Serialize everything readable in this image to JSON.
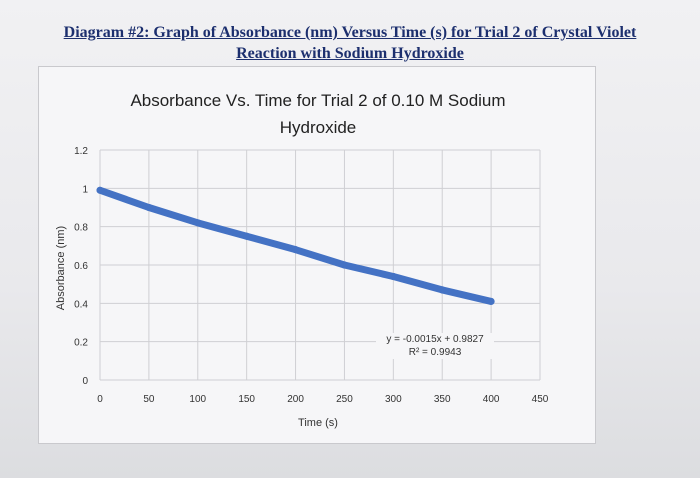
{
  "diagram_title": {
    "line1": "Diagram #2: Graph of Absorbance (nm) Versus Time (s) for Trial 2 of Crystal Violet",
    "line2": "Reaction with Sodium Hydroxide"
  },
  "colors": {
    "series": "#4472c4",
    "grid": "#cfcfd3",
    "text": "#333333",
    "title_ink": "#1c2f6e"
  },
  "chart_data": {
    "type": "line",
    "title": "Absorbance Vs. Time for Trial 2 of 0.10 M Sodium Hydroxide",
    "title_lines": [
      "Absorbance Vs. Time for Trial 2 of 0.10 M Sodium",
      "Hydroxide"
    ],
    "xlabel": "Time (s)",
    "ylabel": "Absorbance (nm)",
    "xlim": [
      0,
      450
    ],
    "ylim": [
      0,
      1.2
    ],
    "x_ticks": [
      "0",
      "50",
      "100",
      "150",
      "200",
      "250",
      "300",
      "350",
      "400",
      "450"
    ],
    "y_ticks": [
      "0",
      "0.2",
      "0.4",
      "0.6",
      "0.8",
      "1",
      "1.2"
    ],
    "grid": true,
    "series": [
      {
        "x": [
          0,
          50,
          100,
          150,
          200,
          250,
          300,
          350,
          400
        ],
        "y": [
          0.99,
          0.9,
          0.82,
          0.75,
          0.68,
          0.6,
          0.54,
          0.47,
          0.41
        ]
      }
    ],
    "trendline": {
      "equation": "y = -0.0015x + 0.9827",
      "r_squared": "R² = 0.9943"
    }
  }
}
